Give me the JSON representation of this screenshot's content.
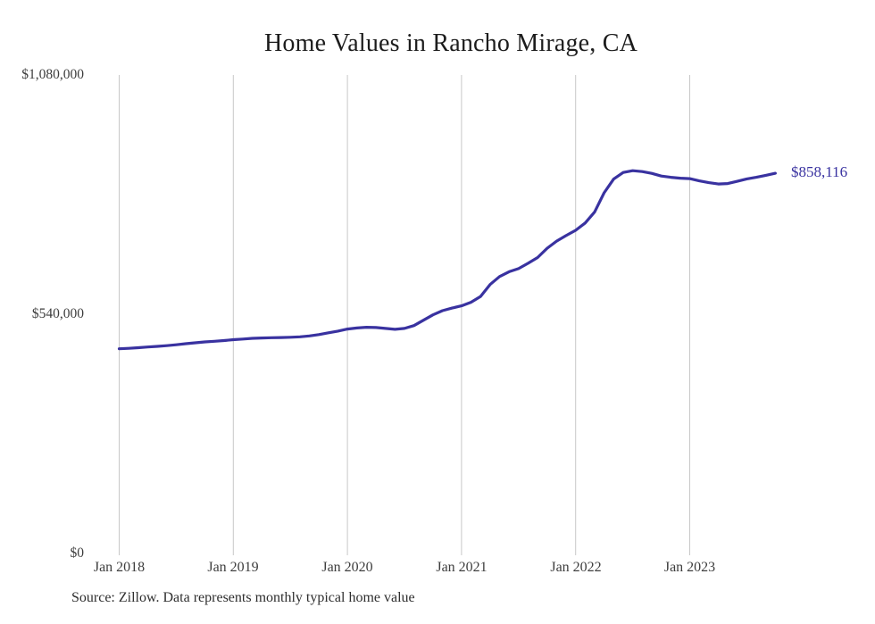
{
  "chart_data": {
    "type": "line",
    "title": "Home Values in Rancho Mirage, CA",
    "source": "Source: Zillow. Data represents monthly typical home value",
    "end_label": "$858,116",
    "latest_value": 858116,
    "ylim": [
      0,
      1080000
    ],
    "ytick_labels": [
      "$0",
      "$540,000",
      "$1,080,000"
    ],
    "xtick_labels": [
      "Jan 2018",
      "Jan 2019",
      "Jan 2020",
      "Jan 2021",
      "Jan 2022",
      "Jan 2023"
    ],
    "grid": "vertical-only",
    "legend": "none",
    "line_color": "#3932a0",
    "grid_color": "#c8c8c8",
    "frequency": "monthly",
    "x": [
      "2018-01",
      "2018-02",
      "2018-03",
      "2018-04",
      "2018-05",
      "2018-06",
      "2018-07",
      "2018-08",
      "2018-09",
      "2018-10",
      "2018-11",
      "2018-12",
      "2019-01",
      "2019-02",
      "2019-03",
      "2019-04",
      "2019-05",
      "2019-06",
      "2019-07",
      "2019-08",
      "2019-09",
      "2019-10",
      "2019-11",
      "2019-12",
      "2020-01",
      "2020-02",
      "2020-03",
      "2020-04",
      "2020-05",
      "2020-06",
      "2020-07",
      "2020-08",
      "2020-09",
      "2020-10",
      "2020-11",
      "2020-12",
      "2021-01",
      "2021-02",
      "2021-03",
      "2021-04",
      "2021-05",
      "2021-06",
      "2021-07",
      "2021-08",
      "2021-09",
      "2021-10",
      "2021-11",
      "2021-12",
      "2022-01",
      "2022-02",
      "2022-03",
      "2022-04",
      "2022-05",
      "2022-06",
      "2022-07",
      "2022-08",
      "2022-09",
      "2022-10",
      "2022-11",
      "2022-12",
      "2023-01",
      "2023-02",
      "2023-03",
      "2023-04",
      "2023-05",
      "2023-06",
      "2023-07",
      "2023-08",
      "2023-09",
      "2023-10"
    ],
    "values": [
      462000,
      463000,
      464500,
      466000,
      467500,
      469000,
      471000,
      473500,
      475500,
      477500,
      479000,
      480500,
      482500,
      484000,
      485500,
      486500,
      487000,
      487500,
      488000,
      489000,
      491000,
      494000,
      498000,
      502000,
      506500,
      509000,
      510500,
      510000,
      508000,
      506000,
      508000,
      514500,
      526500,
      538500,
      548000,
      554000,
      559000,
      567000,
      580000,
      607000,
      625000,
      636000,
      643000,
      655000,
      668000,
      689000,
      705000,
      717500,
      729500,
      746000,
      771000,
      814000,
      845000,
      860000,
      864000,
      862000,
      858000,
      852000,
      849000,
      847000,
      846000,
      841000,
      837000,
      834000,
      835000,
      840000,
      845500,
      849000,
      853500,
      858116
    ]
  }
}
